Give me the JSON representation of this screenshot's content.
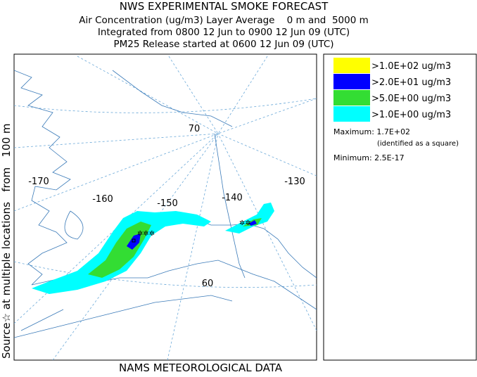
{
  "header": {
    "title": "NWS EXPERIMENTAL SMOKE FORECAST",
    "lines": [
      "Air Concentration (ug/m3) Layer Average    0 m and  5000 m",
      "Integrated from 0800 12 Jun to 0900 12 Jun 09 (UTC)",
      "PM25 Release started at 0600 12 Jun 09 (UTC)"
    ]
  },
  "side_label": "Source☆ at multiple locations   from   100 m",
  "footer": "NAMS METEOROLOGICAL DATA",
  "map": {
    "longitude_labels": [
      "-170",
      "-160",
      "-150",
      "-140",
      "-130"
    ],
    "latitude_labels": [
      "70",
      "60"
    ]
  },
  "legend": {
    "entries": [
      {
        "label": ">1.0E+02 ug/m3",
        "color": "#ffff00"
      },
      {
        "label": ">2.0E+01 ug/m3",
        "color": "#0000ff"
      },
      {
        "label": ">5.0E+00 ug/m3",
        "color": "#33dd33"
      },
      {
        "label": ">1.0E+00 ug/m3",
        "color": "#00ffff"
      }
    ],
    "maximum": "Maximum: 1.7E+02",
    "maximum_note": "(identified as a square)",
    "minimum": "Minimum: 2.5E-17"
  }
}
